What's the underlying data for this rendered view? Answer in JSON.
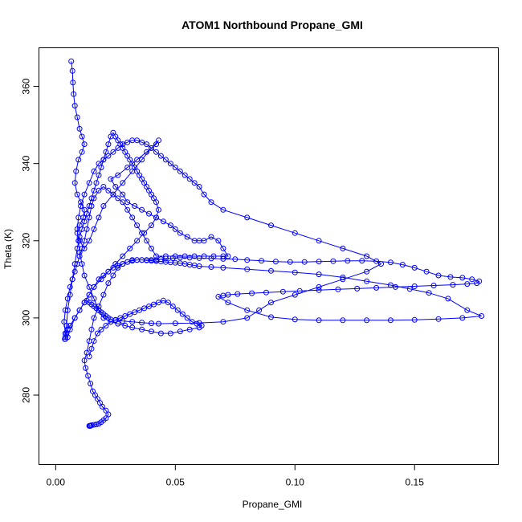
{
  "chart_data": {
    "type": "line",
    "title": "ATOM1 Northbound Propane_GMI",
    "xlabel": "Propane_GMI",
    "ylabel": "Theta (K)",
    "xlim": [
      -0.007,
      0.185
    ],
    "ylim": [
      262,
      370
    ],
    "xticks": [
      0.0,
      0.05,
      0.1,
      0.15
    ],
    "xtick_labels": [
      "0.00",
      "0.05",
      "0.10",
      "0.15"
    ],
    "yticks": [
      280,
      300,
      320,
      340,
      360
    ],
    "ytick_labels": [
      "280",
      "300",
      "320",
      "340",
      "360"
    ],
    "grid": false,
    "legend": "none",
    "colors": {
      "series": "#0000ff",
      "frame": "#000000"
    },
    "series": [
      {
        "marker": "open-circle",
        "x": [
          0.0065,
          0.007,
          0.0072,
          0.0075,
          0.008,
          0.009,
          0.01,
          0.011,
          0.012,
          0.011,
          0.0095,
          0.0085,
          0.008,
          0.009,
          0.0105,
          0.012,
          0.0115,
          0.01,
          0.009,
          0.01,
          0.012,
          0.014,
          0.016,
          0.018,
          0.02,
          0.024,
          0.028,
          0.032,
          0.036,
          0.04,
          0.043,
          0.042,
          0.038,
          0.034,
          0.03,
          0.026,
          0.023,
          0.025,
          0.028,
          0.03,
          0.033,
          0.036,
          0.039,
          0.042,
          0.045,
          0.048,
          0.05,
          0.052,
          0.055,
          0.058,
          0.06,
          0.062,
          0.065,
          0.068,
          0.07,
          0.072,
          0.07,
          0.066,
          0.062,
          0.058,
          0.054,
          0.05,
          0.046,
          0.042,
          0.04,
          0.038,
          0.036,
          0.034,
          0.032,
          0.03,
          0.028,
          0.026,
          0.024,
          0.022,
          0.02,
          0.018,
          0.016,
          0.015,
          0.014,
          0.013,
          0.012,
          0.011,
          0.01,
          0.009,
          0.008,
          0.007,
          0.006,
          0.005,
          0.004,
          0.0035,
          0.004,
          0.005,
          0.006,
          0.008,
          0.01,
          0.012,
          0.014,
          0.016,
          0.018,
          0.02,
          0.022,
          0.024,
          0.026,
          0.028,
          0.03,
          0.032,
          0.034,
          0.036,
          0.038,
          0.04,
          0.042,
          0.044,
          0.046,
          0.049,
          0.052,
          0.056,
          0.06,
          0.065,
          0.07,
          0.075,
          0.08,
          0.086,
          0.092,
          0.098,
          0.104,
          0.11,
          0.116,
          0.122,
          0.128,
          0.134,
          0.14,
          0.145,
          0.15,
          0.155,
          0.16,
          0.165,
          0.17,
          0.174,
          0.177,
          0.176,
          0.172,
          0.166,
          0.158,
          0.15,
          0.142,
          0.134,
          0.126,
          0.118,
          0.11,
          0.102,
          0.095,
          0.088,
          0.082,
          0.076,
          0.072,
          0.07,
          0.068,
          0.072,
          0.08,
          0.09,
          0.1,
          0.11,
          0.12,
          0.13,
          0.14,
          0.15,
          0.16,
          0.17,
          0.178,
          0.172,
          0.164,
          0.156,
          0.148,
          0.14,
          0.13,
          0.12,
          0.11,
          0.1,
          0.09,
          0.08,
          0.07,
          0.065,
          0.06,
          0.058,
          0.056,
          0.054,
          0.052,
          0.05,
          0.048,
          0.046,
          0.044,
          0.042,
          0.04,
          0.038,
          0.036,
          0.034,
          0.032,
          0.03,
          0.028,
          0.026,
          0.024,
          0.022,
          0.02,
          0.018,
          0.016,
          0.015,
          0.014,
          0.013,
          0.012,
          0.0125,
          0.0135,
          0.0145,
          0.0155,
          0.0165,
          0.0175,
          0.0185,
          0.0195,
          0.021,
          0.022,
          0.021,
          0.02,
          0.019,
          0.018,
          0.017,
          0.016,
          0.015,
          0.0145,
          0.014,
          0.0142,
          0.0145
        ],
        "y": [
          366.5,
          364,
          361,
          358,
          355,
          352,
          349,
          347,
          345,
          343,
          341,
          338,
          335,
          332,
          330,
          328,
          326,
          324,
          322,
          320,
          318,
          320,
          323,
          326,
          329,
          332,
          335,
          338,
          341,
          344,
          346,
          345,
          343,
          341,
          339,
          337,
          336,
          334,
          332,
          330,
          329,
          328,
          327,
          326,
          325,
          324,
          323,
          322,
          321,
          320,
          320,
          320,
          321,
          320,
          318,
          316,
          316,
          316,
          316,
          316,
          316,
          316,
          316,
          316,
          318,
          320,
          322,
          324,
          326,
          328,
          330,
          331,
          332,
          333,
          334,
          333,
          331,
          329,
          326,
          323,
          320,
          318,
          316,
          314,
          312,
          310,
          308,
          305,
          302,
          299,
          296,
          295,
          297,
          300,
          302,
          304,
          306,
          308,
          310,
          311,
          312,
          313,
          313.5,
          314,
          314.5,
          315,
          315,
          315,
          315,
          315,
          315,
          315.2,
          315.4,
          315.5,
          315.6,
          315.6,
          315.5,
          315.4,
          315.3,
          315.2,
          315,
          314.8,
          314.6,
          314.5,
          314.5,
          314.6,
          314.7,
          314.8,
          314.8,
          314.7,
          314.4,
          313.8,
          313,
          312,
          311,
          310.6,
          310.4,
          310,
          309.5,
          309,
          308.8,
          308.6,
          308.4,
          308.2,
          308,
          307.8,
          307.6,
          307.4,
          307.2,
          307,
          306.8,
          306.6,
          306.4,
          306.2,
          306,
          305.8,
          305.5,
          304,
          302,
          300.2,
          299.6,
          299.4,
          299.4,
          299.4,
          299.4,
          299.5,
          299.7,
          300,
          300.5,
          302,
          305,
          306.5,
          307.5,
          308.5,
          309.5,
          310.5,
          311.3,
          311.8,
          312.2,
          312.6,
          313,
          313.2,
          313.4,
          313.6,
          313.8,
          314,
          314.2,
          314.3,
          314.4,
          314.5,
          314.6,
          314.7,
          314.8,
          314.9,
          315,
          315,
          314.8,
          314.5,
          314,
          313,
          311,
          309,
          306,
          303,
          300,
          297,
          294,
          291,
          289,
          287,
          285,
          283,
          281,
          280,
          279,
          278,
          277,
          276,
          275,
          274,
          273.5,
          273,
          272.6,
          272.4,
          272.3,
          272.2,
          272.1,
          272,
          272,
          272
        ]
      },
      {
        "marker": "open-circle",
        "x": [
          0.014,
          0.015,
          0.016,
          0.0175,
          0.019,
          0.021,
          0.023,
          0.025,
          0.027,
          0.029,
          0.031,
          0.033,
          0.035,
          0.037,
          0.039,
          0.041,
          0.043,
          0.045,
          0.047,
          0.049,
          0.051,
          0.053,
          0.055,
          0.057,
          0.059,
          0.061,
          0.06,
          0.056,
          0.052,
          0.048,
          0.044,
          0.04,
          0.036,
          0.032,
          0.029,
          0.026,
          0.023,
          0.02,
          0.018,
          0.016,
          0.014,
          0.012,
          0.011,
          0.01,
          0.0095,
          0.009,
          0.0095,
          0.0105,
          0.012,
          0.014,
          0.016,
          0.018,
          0.02,
          0.022,
          0.024,
          0.026,
          0.028,
          0.03,
          0.032,
          0.034,
          0.036,
          0.038,
          0.04,
          0.042,
          0.044,
          0.046,
          0.048,
          0.05,
          0.052,
          0.054,
          0.056,
          0.058,
          0.06,
          0.062,
          0.065,
          0.07,
          0.08,
          0.09,
          0.1,
          0.11,
          0.12,
          0.13,
          0.136,
          0.13,
          0.12,
          0.11,
          0.1,
          0.09,
          0.085,
          0.08,
          0.07,
          0.06,
          0.05,
          0.043,
          0.04,
          0.036,
          0.032,
          0.028,
          0.025,
          0.023,
          0.022,
          0.021,
          0.02,
          0.019,
          0.018,
          0.017,
          0.016,
          0.015,
          0.014,
          0.013
        ],
        "y": [
          290,
          292,
          294,
          296,
          297,
          298,
          299,
          299.5,
          300,
          300.5,
          301,
          301.5,
          302,
          302.5,
          303,
          303.5,
          304,
          304.5,
          304,
          303,
          302,
          301,
          300,
          299,
          298.5,
          298,
          297.5,
          297,
          296.5,
          296,
          296,
          296.5,
          297,
          297.5,
          298,
          298.5,
          299,
          300,
          302,
          305,
          308,
          311,
          314,
          317,
          320,
          323,
          326,
          329,
          332,
          335,
          338,
          340,
          341,
          342,
          343,
          344,
          345,
          345.5,
          346,
          346,
          345.5,
          345,
          344,
          343,
          342,
          341,
          340,
          339,
          338,
          337,
          336,
          335,
          334,
          332,
          330,
          328,
          326,
          324,
          322,
          320,
          318,
          316,
          314,
          312,
          310,
          308,
          306,
          304,
          302,
          300,
          299,
          298.7,
          298.6,
          298.5,
          298.6,
          298.8,
          299,
          299.2,
          299.4,
          299.6,
          300,
          300.5,
          301,
          301.5,
          302,
          302.5,
          303,
          303.5,
          304,
          304.5
        ]
      },
      {
        "marker": "open-circle",
        "x": [
          0.004,
          0.0045,
          0.005,
          0.006,
          0.007,
          0.008,
          0.009,
          0.01,
          0.011,
          0.012,
          0.013,
          0.014,
          0.015,
          0.016,
          0.017,
          0.018,
          0.019,
          0.02,
          0.021,
          0.022,
          0.023,
          0.024,
          0.025,
          0.026,
          0.027,
          0.028,
          0.029,
          0.03,
          0.031,
          0.032,
          0.033,
          0.034,
          0.035,
          0.036,
          0.037,
          0.038,
          0.039,
          0.04,
          0.041,
          0.042,
          0.043,
          0.042,
          0.04,
          0.037,
          0.034,
          0.031,
          0.028,
          0.025,
          0.022,
          0.019,
          0.016,
          0.014,
          0.012,
          0.01,
          0.008,
          0.006,
          0.005,
          0.0045,
          0.004,
          0.0038
        ],
        "y": [
          294.5,
          298,
          302,
          306,
          310,
          314,
          318,
          321,
          323,
          325,
          327,
          329,
          331,
          333,
          335,
          337,
          339,
          341,
          343,
          345,
          347,
          348,
          347,
          346,
          345,
          344,
          343,
          342,
          341,
          340,
          339,
          338,
          337,
          336,
          335,
          334,
          333,
          332,
          331,
          330,
          328,
          326,
          324,
          322,
          320,
          318,
          316,
          314,
          312,
          310,
          308,
          306,
          304,
          302,
          300,
          298,
          297,
          296,
          295,
          294.5
        ]
      }
    ]
  }
}
